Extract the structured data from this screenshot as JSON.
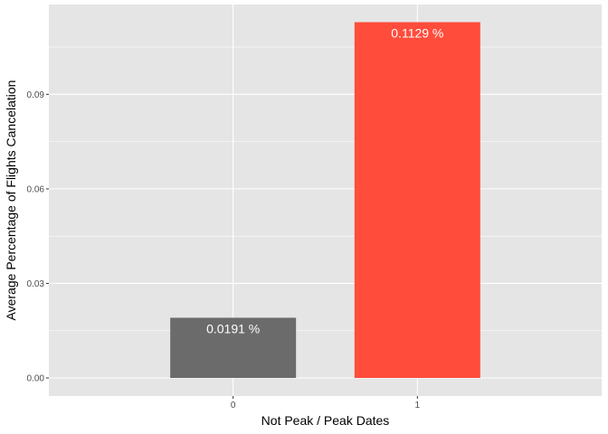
{
  "chart_data": {
    "type": "bar",
    "title": "",
    "xlabel": "Not Peak / Peak Dates",
    "ylabel": "Average Percentage of Flights Cancelation",
    "categories": [
      "0",
      "1"
    ],
    "values": [
      0.0191,
      0.1129
    ],
    "data_labels": [
      "0.0191 %",
      "0.1129 %"
    ],
    "bar_colors": [
      "#6b6b6b",
      "#ff4c3b"
    ],
    "ylim": [
      0,
      0.1185
    ],
    "yticks": [
      0.0,
      0.03,
      0.06,
      0.09
    ],
    "ytick_labels": [
      "0.00",
      "0.03",
      "0.06",
      "0.09"
    ],
    "grid": true,
    "legend": "none",
    "panel_background": "#e5e5e5",
    "grid_color": "#ffffff"
  }
}
